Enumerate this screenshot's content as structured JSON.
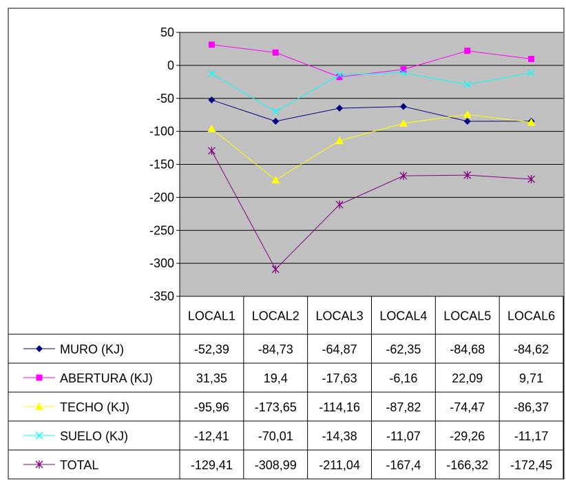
{
  "chart_data": {
    "type": "line",
    "categories": [
      "LOCAL1",
      "LOCAL2",
      "LOCAL3",
      "LOCAL4",
      "LOCAL5",
      "LOCAL6"
    ],
    "ylim": [
      -350,
      50
    ],
    "yticks": [
      50,
      0,
      -50,
      -100,
      -150,
      -200,
      -250,
      -300,
      -350
    ],
    "grid": true,
    "legend": "data-table",
    "series": [
      {
        "name": "MURO (KJ)",
        "color": "#000080",
        "marker": "diamond",
        "values": [
          -52.39,
          -84.73,
          -64.87,
          -62.35,
          -84.68,
          -84.62
        ],
        "labels": [
          "-52,39",
          "-84,73",
          "-64,87",
          "-62,35",
          "-84,68",
          "-84,62"
        ]
      },
      {
        "name": "ABERTURA (KJ)",
        "color": "#FF00FF",
        "marker": "square",
        "values": [
          31.35,
          19.4,
          -17.63,
          -6.16,
          22.09,
          9.71
        ],
        "labels": [
          "31,35",
          "19,4",
          "-17,63",
          "-6,16",
          "22,09",
          "9,71"
        ]
      },
      {
        "name": "TECHO (KJ)",
        "color": "#FFFF00",
        "marker": "triangle",
        "values": [
          -95.96,
          -173.65,
          -114.16,
          -87.82,
          -74.47,
          -86.37
        ],
        "labels": [
          "-95,96",
          "-173,65",
          "-114,16",
          "-87,82",
          "-74,47",
          "-86,37"
        ]
      },
      {
        "name": "SUELO (KJ)",
        "color": "#00FFFF",
        "marker": "x",
        "values": [
          -12.41,
          -70.01,
          -14.38,
          -11.07,
          -29.26,
          -11.17
        ],
        "labels": [
          "-12,41",
          "-70,01",
          "-14,38",
          "-11,07",
          "-29,26",
          "-11,17"
        ]
      },
      {
        "name": "TOTAL",
        "color": "#800080",
        "marker": "star",
        "values": [
          -129.41,
          -308.99,
          -211.04,
          -167.4,
          -166.32,
          -172.45
        ],
        "labels": [
          "-129,41",
          "-308,99",
          "-211,04",
          "-167,4",
          "-166,32",
          "-172,45"
        ]
      }
    ]
  }
}
